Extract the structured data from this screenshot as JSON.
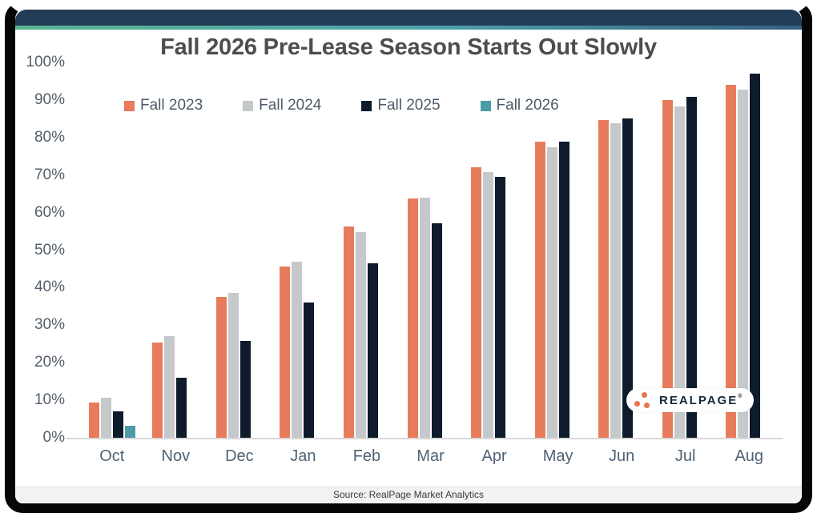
{
  "title": "Fall 2026 Pre-Lease Season Starts Out Slowly",
  "chart_data": {
    "type": "bar",
    "categories": [
      "Oct",
      "Nov",
      "Dec",
      "Jan",
      "Feb",
      "Mar",
      "Apr",
      "May",
      "Jun",
      "Jul",
      "Aug"
    ],
    "series": [
      {
        "name": "Fall 2023",
        "color": "#E87B5C",
        "values": [
          9.4,
          25.3,
          37.5,
          45.6,
          56.3,
          63.8,
          72.0,
          78.8,
          84.7,
          90.0,
          94.1
        ]
      },
      {
        "name": "Fall 2024",
        "color": "#C6C9CB",
        "values": [
          10.6,
          27.0,
          38.7,
          46.9,
          54.8,
          63.9,
          70.8,
          77.4,
          83.9,
          88.2,
          92.8
        ]
      },
      {
        "name": "Fall 2025",
        "color": "#0D1B2B",
        "values": [
          7.1,
          16.1,
          25.7,
          36.1,
          46.4,
          57.2,
          69.5,
          78.9,
          85.1,
          90.8,
          97.0
        ]
      },
      {
        "name": "Fall 2026",
        "color": "#4C9AA6",
        "values": [
          3.1,
          null,
          null,
          null,
          null,
          null,
          null,
          null,
          null,
          null,
          null
        ]
      }
    ],
    "ylim": [
      0,
      100
    ],
    "y_ticks": [
      "0%",
      "10%",
      "20%",
      "30%",
      "40%",
      "50%",
      "60%",
      "70%",
      "80%",
      "90%",
      "100%"
    ],
    "grid": false,
    "legend_position": "top-left",
    "xlabel": "",
    "ylabel": ""
  },
  "legend": {
    "items": [
      "Fall 2023",
      "Fall 2024",
      "Fall 2025",
      "Fall 2026"
    ]
  },
  "logo": {
    "text": "REALPAGE",
    "mark": "®",
    "dot_color": "#E8744C",
    "text_color": "#16293F"
  },
  "footer": {
    "source": "Source: RealPage Market Analytics"
  },
  "theme": {
    "header_navy": "#223C58",
    "strip_gradient": [
      "#57B591",
      "#4FA3AA",
      "#35607F"
    ],
    "frame_black": "#060606",
    "footer_bg": "#F2F2F2",
    "title_color": "#4D4D4D",
    "axis_label_color": "#52616F",
    "baseline_color": "#D9D9D9"
  }
}
